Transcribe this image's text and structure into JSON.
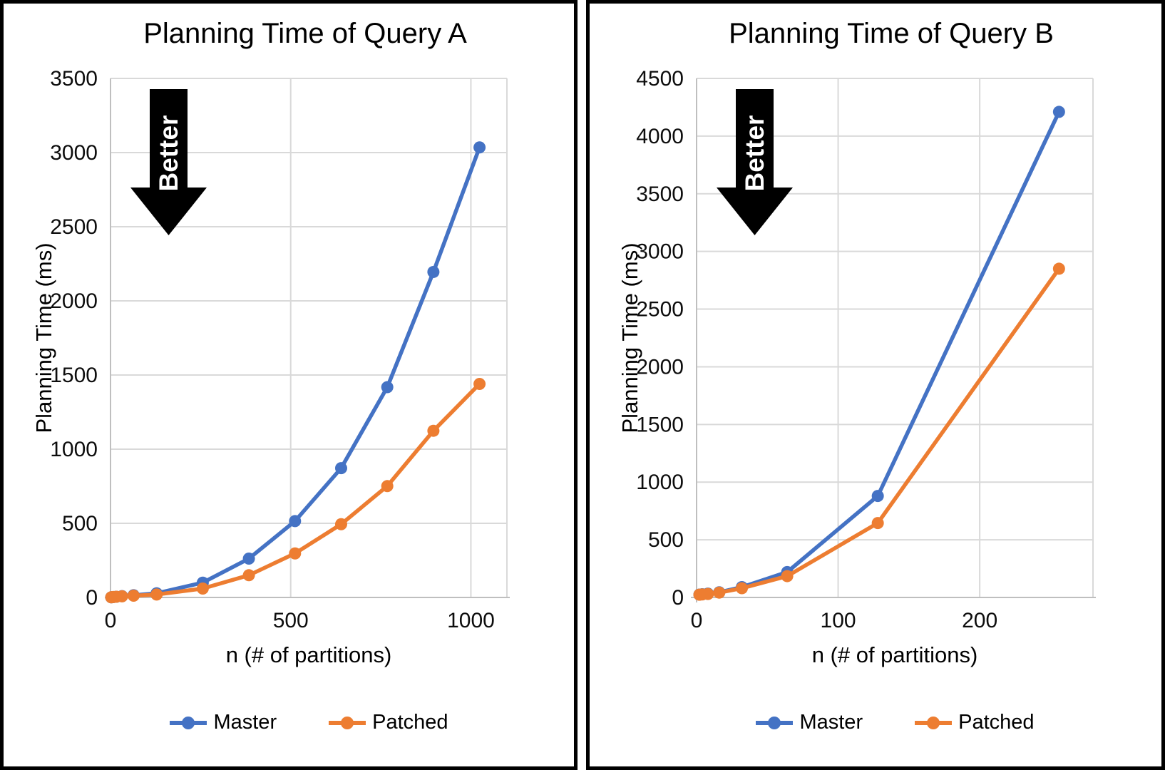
{
  "page_background": "#ffffff",
  "colors": {
    "master": "#4472C4",
    "patched": "#ED7D31",
    "gridline": "#D9D9D9",
    "axis_line": "#BFBFBF",
    "tick_text": "#0d0d0d",
    "arrow_fill": "#000000",
    "arrow_text": "#FFFFFF"
  },
  "better_label": "Better",
  "chart_data": [
    {
      "type": "line",
      "title": "Planning Time of Query A",
      "xlabel": "n (# of partitions)",
      "ylabel": "Planning Time (ms)",
      "x": [
        2,
        4,
        8,
        16,
        32,
        64,
        128,
        256,
        384,
        512,
        640,
        768,
        896,
        1024
      ],
      "series": [
        {
          "name": "Master",
          "color": "#4472C4",
          "values": [
            1,
            2,
            3,
            5,
            9,
            15,
            28,
            100,
            262,
            515,
            872,
            1418,
            2195,
            3035
          ]
        },
        {
          "name": "Patched",
          "color": "#ED7D31",
          "values": [
            1,
            2,
            3,
            5,
            8,
            12,
            20,
            60,
            150,
            297,
            494,
            751,
            1124,
            1440
          ]
        }
      ],
      "xlim": [
        0,
        1100
      ],
      "ylim": [
        0,
        3500
      ],
      "xticks": [
        0,
        500,
        1000
      ],
      "yticks": [
        0,
        500,
        1000,
        1500,
        2000,
        2500,
        3000,
        3500
      ],
      "grid": true,
      "legend_position": "bottom",
      "annotation": "Better"
    },
    {
      "type": "line",
      "title": "Planning Time of Query B",
      "xlabel": "n (# of partitions)",
      "ylabel": "Planning Time (ms)",
      "x": [
        2,
        4,
        8,
        16,
        32,
        64,
        128,
        256
      ],
      "series": [
        {
          "name": "Master",
          "color": "#4472C4",
          "values": [
            25,
            28,
            33,
            45,
            90,
            220,
            880,
            4210
          ]
        },
        {
          "name": "Patched",
          "color": "#ED7D31",
          "values": [
            24,
            26,
            30,
            42,
            80,
            185,
            645,
            2850
          ]
        }
      ],
      "xlim": [
        0,
        280
      ],
      "ylim": [
        0,
        4500
      ],
      "xticks": [
        0,
        100,
        200
      ],
      "yticks": [
        0,
        500,
        1000,
        1500,
        2000,
        2500,
        3000,
        3500,
        4000,
        4500
      ],
      "grid": true,
      "legend_position": "bottom",
      "annotation": "Better"
    }
  ]
}
